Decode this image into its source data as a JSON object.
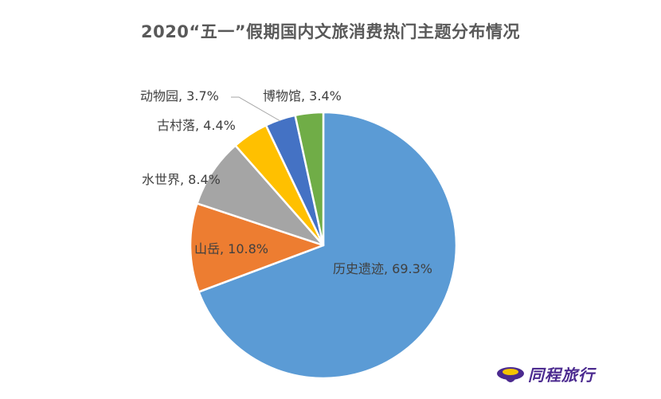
{
  "chart_data": {
    "type": "pie",
    "title": "2020“五一”假期国内文旅消费热门主题分布情况",
    "slices": [
      {
        "name": "历史遗迹",
        "value": 69.3,
        "label": "历史遗迹, 69.3%",
        "color": "#5b9bd5"
      },
      {
        "name": "山岳",
        "value": 10.8,
        "label": "山岳, 10.8%",
        "color": "#ed7d31"
      },
      {
        "name": "水世界",
        "value": 8.4,
        "label": "水世界, 8.4%",
        "color": "#a5a5a5"
      },
      {
        "name": "古村落",
        "value": 4.4,
        "label": "古村落, 4.4%",
        "color": "#ffc000"
      },
      {
        "name": "动物园",
        "value": 3.7,
        "label": "动物园, 3.7%",
        "color": "#4472c4"
      },
      {
        "name": "博物馆",
        "value": 3.4,
        "label": "博物馆, 3.4%",
        "color": "#70ad47"
      }
    ],
    "start_angle_deg": 0,
    "direction": "clockwise",
    "legend": "none"
  },
  "watermark": {
    "text": "同程旅行",
    "icon": "tongcheng-logo-icon",
    "color": "#4b2a8f"
  }
}
